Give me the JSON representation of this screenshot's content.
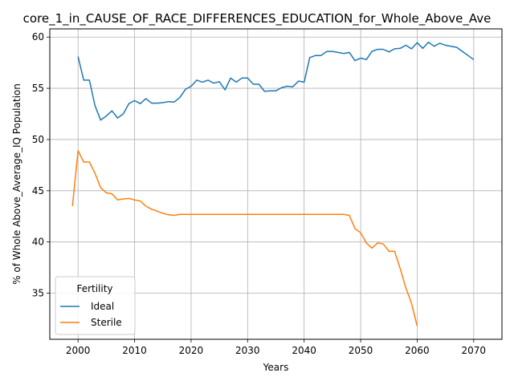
{
  "chart_data": {
    "type": "line",
    "title": "core_1_in_CAUSE_OF_RACE_DIFFERENCES_EDUCATION_for_Whole_Above_Ave",
    "xlabel": "Years",
    "ylabel": "% of Whole Above_Average_IQ Population",
    "xlim": [
      1995,
      2075
    ],
    "ylim": [
      30.5,
      60.8
    ],
    "xticks": [
      2000,
      2010,
      2020,
      2030,
      2040,
      2050,
      2060,
      2070
    ],
    "yticks": [
      35,
      40,
      45,
      50,
      55,
      60
    ],
    "grid": true,
    "legend": {
      "title": "Fertility",
      "placement": "lower-left"
    },
    "series": [
      {
        "name": "Ideal",
        "color": "#1f77b4",
        "x": [
          2000,
          2001,
          2002,
          2003,
          2004,
          2005,
          2006,
          2007,
          2008,
          2009,
          2010,
          2011,
          2012,
          2013,
          2014,
          2015,
          2016,
          2017,
          2018,
          2019,
          2020,
          2021,
          2022,
          2023,
          2024,
          2025,
          2026,
          2027,
          2028,
          2029,
          2030,
          2031,
          2032,
          2033,
          2034,
          2035,
          2036,
          2037,
          2038,
          2039,
          2040,
          2041,
          2042,
          2043,
          2044,
          2045,
          2046,
          2047,
          2048,
          2049,
          2050,
          2051,
          2052,
          2053,
          2054,
          2055,
          2056,
          2057,
          2058,
          2059,
          2060,
          2061,
          2062,
          2063,
          2064,
          2065,
          2066,
          2067,
          2068,
          2069,
          2070
        ],
        "y": [
          58.1,
          55.8,
          55.8,
          53.3,
          51.9,
          52.3,
          52.8,
          52.1,
          52.5,
          53.5,
          53.8,
          53.5,
          54.0,
          53.55,
          53.55,
          53.6,
          53.7,
          53.65,
          54.1,
          54.9,
          55.2,
          55.8,
          55.6,
          55.8,
          55.5,
          55.65,
          54.85,
          56.0,
          55.6,
          56.0,
          56.0,
          55.4,
          55.4,
          54.7,
          54.75,
          54.75,
          55.05,
          55.2,
          55.15,
          55.7,
          55.6,
          58.0,
          58.2,
          58.2,
          58.6,
          58.6,
          58.5,
          58.4,
          58.5,
          57.7,
          57.95,
          57.8,
          58.6,
          58.8,
          58.8,
          58.55,
          58.85,
          58.9,
          59.2,
          58.85,
          59.45,
          58.9,
          59.5,
          59.1,
          59.4,
          59.2,
          59.1,
          59.0,
          58.6,
          58.2,
          57.8
        ]
      },
      {
        "name": "Sterile",
        "color": "#ff7f0e",
        "x": [
          1999,
          2000,
          2001,
          2002,
          2003,
          2004,
          2005,
          2006,
          2007,
          2008,
          2009,
          2010,
          2011,
          2012,
          2013,
          2014,
          2015,
          2016,
          2017,
          2018,
          2019,
          2020,
          2021,
          2022,
          2023,
          2024,
          2025,
          2026,
          2027,
          2028,
          2029,
          2030,
          2031,
          2032,
          2033,
          2034,
          2035,
          2036,
          2037,
          2038,
          2039,
          2040,
          2041,
          2042,
          2043,
          2044,
          2045,
          2046,
          2047,
          2048,
          2049,
          2050,
          2051,
          2052,
          2053,
          2054,
          2055,
          2056,
          2057,
          2058,
          2059,
          2060
        ],
        "y": [
          43.5,
          48.9,
          47.8,
          47.8,
          46.7,
          45.3,
          44.8,
          44.7,
          44.1,
          44.2,
          44.25,
          44.1,
          44.0,
          43.5,
          43.2,
          43.0,
          42.8,
          42.65,
          42.6,
          42.7,
          42.7,
          42.7,
          42.7,
          42.7,
          42.7,
          42.7,
          42.7,
          42.7,
          42.7,
          42.7,
          42.7,
          42.7,
          42.7,
          42.7,
          42.7,
          42.7,
          42.7,
          42.7,
          42.7,
          42.7,
          42.7,
          42.7,
          42.7,
          42.7,
          42.7,
          42.7,
          42.7,
          42.7,
          42.7,
          42.6,
          41.3,
          40.9,
          39.9,
          39.4,
          39.9,
          39.8,
          39.1,
          39.1,
          37.4,
          35.5,
          34.0,
          31.8
        ]
      }
    ]
  }
}
